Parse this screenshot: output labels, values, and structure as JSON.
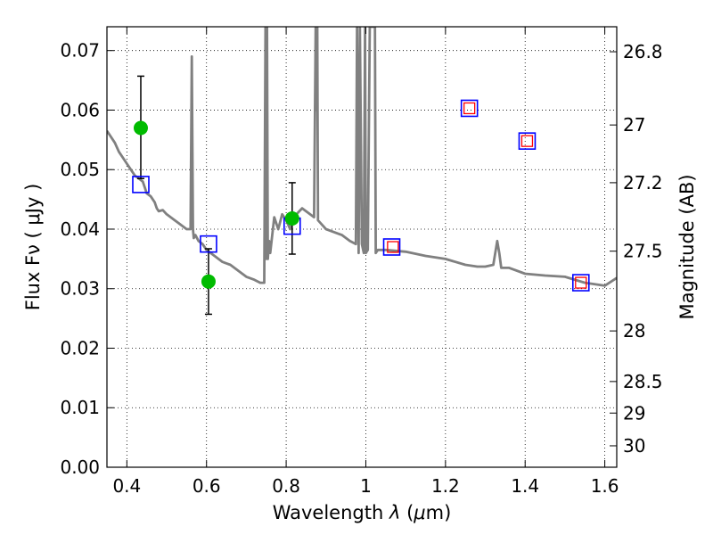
{
  "chart_data": {
    "type": "scatter",
    "title": "",
    "xlabel": "Wavelength  λ (μm)",
    "ylabel": "Flux  Fν  ( μJy )",
    "y2label": "Magnitude (AB)",
    "xlim": [
      0.35,
      1.63
    ],
    "ylim": [
      0.0,
      0.074
    ],
    "grid": true,
    "x_ticks": [
      0.4,
      0.6,
      0.8,
      1.0,
      1.2,
      1.4,
      1.6
    ],
    "x_tick_labels": [
      "0.4",
      "0.6",
      "0.8",
      "1",
      "1.2",
      "1.4",
      "1.6"
    ],
    "y_ticks": [
      0.0,
      0.01,
      0.02,
      0.03,
      0.04,
      0.05,
      0.06,
      0.07
    ],
    "y_tick_labels": [
      "0.00",
      "0.01",
      "0.02",
      "0.03",
      "0.04",
      "0.05",
      "0.06",
      "0.07"
    ],
    "y2_ticks": [
      {
        "label": "26.8",
        "flux": 0.0698
      },
      {
        "label": "27",
        "flux": 0.0575
      },
      {
        "label": "27.2",
        "flux": 0.0478
      },
      {
        "label": "27.5",
        "flux": 0.0363
      },
      {
        "label": "28",
        "flux": 0.0229
      },
      {
        "label": "28.5",
        "flux": 0.0144
      },
      {
        "label": "29",
        "flux": 0.0091
      },
      {
        "label": "30",
        "flux": 0.0036
      }
    ],
    "colors": {
      "model": "#808080",
      "model_points": "#0000ff",
      "observed_points": "#ff0000",
      "detections": "#00bb00",
      "grid": "#000000"
    },
    "series": [
      {
        "kind": "line",
        "x": [
          0.35,
          0.36,
          0.37,
          0.38,
          0.39,
          0.4,
          0.41,
          0.42,
          0.43,
          0.44,
          0.45,
          0.46,
          0.47,
          0.475,
          0.48,
          0.49,
          0.5,
          0.51,
          0.52,
          0.53,
          0.54,
          0.55,
          0.56,
          0.563,
          0.566,
          0.568,
          0.572,
          0.58,
          0.59,
          0.6,
          0.62,
          0.64,
          0.66,
          0.68,
          0.7,
          0.72,
          0.735,
          0.745,
          0.748,
          0.75,
          0.752,
          0.754,
          0.757,
          0.76,
          0.77,
          0.78,
          0.79,
          0.8,
          0.81,
          0.82,
          0.83,
          0.84,
          0.86,
          0.87,
          0.874,
          0.876,
          0.878,
          0.88,
          0.9,
          0.92,
          0.94,
          0.96,
          0.975,
          0.978,
          0.982,
          0.985,
          0.99,
          0.995,
          0.998,
          1.0,
          1.005,
          1.01,
          1.02,
          1.023,
          1.025,
          1.03,
          1.05,
          1.1,
          1.15,
          1.2,
          1.25,
          1.28,
          1.3,
          1.32,
          1.33,
          1.335,
          1.34,
          1.36,
          1.4,
          1.45,
          1.5,
          1.55,
          1.6,
          1.63
        ],
        "y": [
          0.0565,
          0.0555,
          0.0545,
          0.053,
          0.052,
          0.051,
          0.05,
          0.049,
          0.0485,
          0.048,
          0.046,
          0.0455,
          0.0445,
          0.0435,
          0.043,
          0.0432,
          0.0425,
          0.042,
          0.0415,
          0.041,
          0.0405,
          0.04,
          0.04,
          0.069,
          0.04,
          0.0385,
          0.039,
          0.038,
          0.0375,
          0.0365,
          0.0355,
          0.0345,
          0.034,
          0.033,
          0.032,
          0.0315,
          0.031,
          0.031,
          0.074,
          0.035,
          0.074,
          0.035,
          0.038,
          0.036,
          0.042,
          0.04,
          0.0425,
          0.0415,
          0.04,
          0.042,
          0.0428,
          0.0435,
          0.0425,
          0.042,
          0.074,
          0.06,
          0.074,
          0.0415,
          0.04,
          0.0395,
          0.039,
          0.038,
          0.0375,
          0.074,
          0.036,
          0.074,
          0.0375,
          0.036,
          0.074,
          0.036,
          0.0365,
          0.074,
          0.074,
          0.074,
          0.036,
          0.0365,
          0.0365,
          0.0362,
          0.0355,
          0.035,
          0.034,
          0.0337,
          0.0337,
          0.034,
          0.038,
          0.036,
          0.0335,
          0.0335,
          0.0325,
          0.0322,
          0.032,
          0.031,
          0.0305,
          0.0318
        ]
      },
      {
        "kind": "open-square-blue",
        "x": [
          0.435,
          0.605,
          0.815,
          1.065,
          1.26,
          1.405,
          1.54
        ],
        "y": [
          0.0475,
          0.0375,
          0.0405,
          0.037,
          0.0603,
          0.0548,
          0.031
        ]
      },
      {
        "kind": "open-square-red",
        "x": [
          1.068,
          1.26,
          1.405,
          1.54
        ],
        "y": [
          0.037,
          0.0603,
          0.0548,
          0.031
        ]
      },
      {
        "kind": "filled-circle-errorbar",
        "x": [
          0.435,
          0.605,
          0.815
        ],
        "y": [
          0.057,
          0.0312,
          0.0418
        ],
        "err_low": [
          0.0085,
          0.0055,
          0.006
        ],
        "err_high": [
          0.0087,
          0.0055,
          0.006
        ]
      }
    ]
  }
}
